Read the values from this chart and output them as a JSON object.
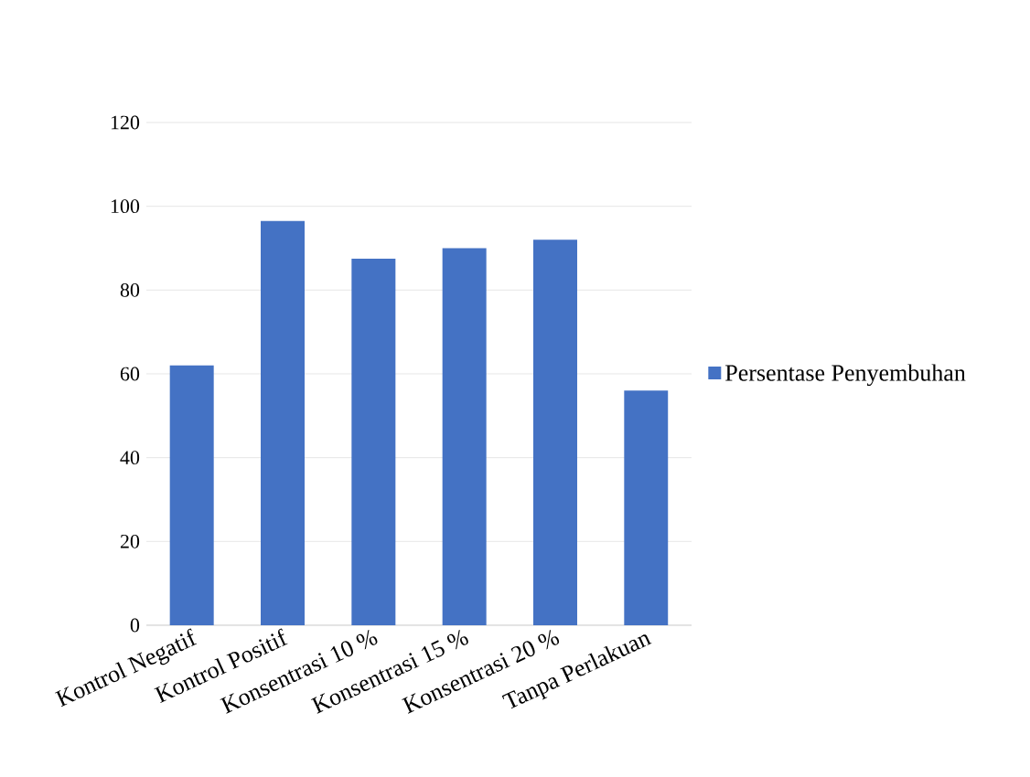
{
  "chart_data": {
    "type": "bar",
    "categories": [
      "Kontrol Negatif",
      "Kontrol Positif",
      "Konsentrasi 10 %",
      "Konsentrasi 15 %",
      "Konsentrasi 20 %",
      "Tanpa Perlakuan"
    ],
    "series": [
      {
        "name": "Persentase Penyembuhan",
        "color": "#4472c4",
        "values": [
          62,
          96.5,
          87.5,
          90,
          92,
          56
        ]
      }
    ],
    "ylim": [
      0,
      120
    ],
    "yticks": [
      0,
      20,
      40,
      60,
      80,
      100,
      120
    ],
    "grid": "y",
    "legend": "right"
  }
}
